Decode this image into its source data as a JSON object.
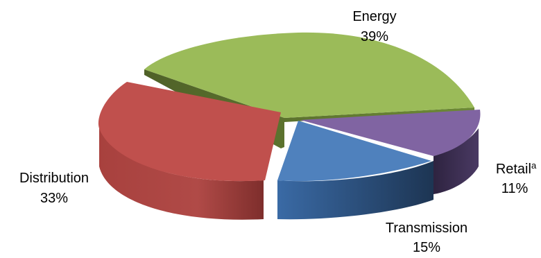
{
  "chart_data": {
    "type": "pie",
    "three_d": true,
    "exploded": true,
    "title": "",
    "slices": [
      {
        "label": "Energy",
        "value": 39,
        "value_label": "39%",
        "color": "#9bbb59"
      },
      {
        "label": "Retail",
        "superscript": "a",
        "value": 11,
        "value_label": "11%",
        "color": "#8064a2"
      },
      {
        "label": "Transmission",
        "value": 15,
        "value_label": "15%",
        "color": "#4f81bd"
      },
      {
        "label": "Distribution",
        "value": 33,
        "value_label": "33%",
        "color": "#c0504d"
      }
    ],
    "legend": "none"
  }
}
